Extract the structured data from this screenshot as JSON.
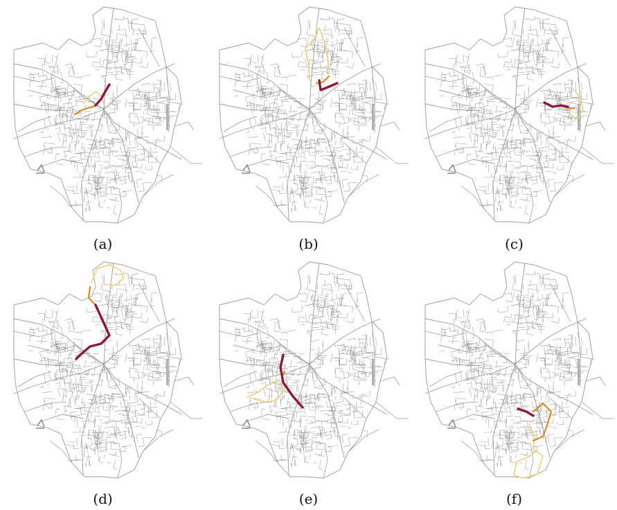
{
  "figure": {
    "panels": [
      {
        "caption": "(a)"
      },
      {
        "caption": "(b)"
      },
      {
        "caption": "(c)"
      },
      {
        "caption": "(d)"
      },
      {
        "caption": "(e)"
      },
      {
        "caption": "(f)"
      }
    ]
  },
  "colors": {
    "network": "#9a9a9a",
    "route_primary": "#8b1a3a",
    "route_secondary": "#d98a2b",
    "route_tertiary": "#e8d27a"
  }
}
